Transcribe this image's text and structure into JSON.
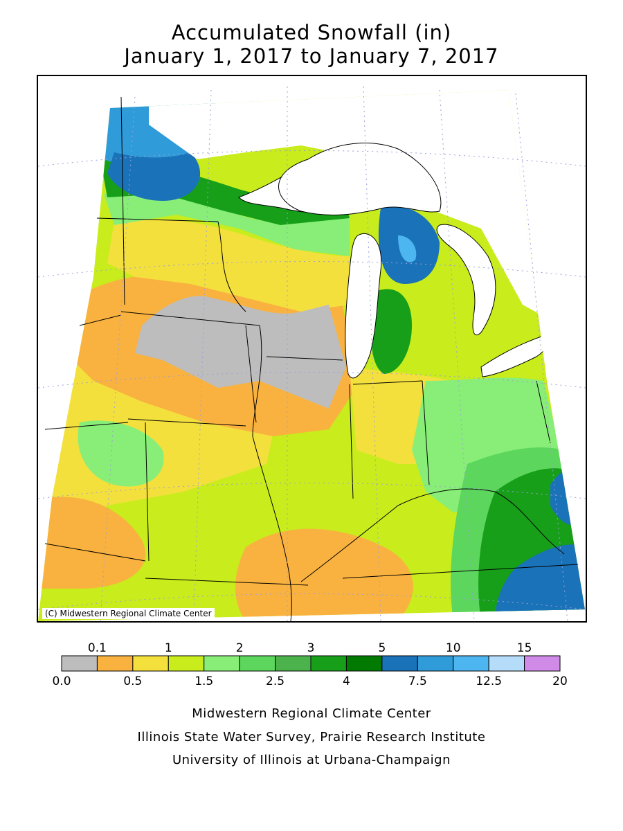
{
  "title": {
    "line1": "Accumulated Snowfall (in)",
    "line2": "January 1, 2017 to January 7, 2017"
  },
  "map": {
    "copyright": "(C) Midwestern Regional Climate Center",
    "colors": {
      "gray": "#bdbdbd",
      "orange": "#f9b23f",
      "yellow": "#f4e03d",
      "yellowgreen": "#c8ec1c",
      "lightgreen": "#88ee77",
      "green1": "#5cd65c",
      "green2": "#4cb34c",
      "green3": "#179f1a",
      "darkgreen": "#027a02",
      "blue_dark": "#1a72b8",
      "blue_med": "#2f9bd9",
      "blue_light": "#4db5ef",
      "blue_pale": "#b5dcf9",
      "violet": "#d08be8",
      "water": "#ffffff"
    }
  },
  "legend": {
    "bins": [
      {
        "color": "#bdbdbd"
      },
      {
        "color": "#f9b23f"
      },
      {
        "color": "#f4e03d"
      },
      {
        "color": "#c8ec1c"
      },
      {
        "color": "#88ee77"
      },
      {
        "color": "#5cd65c"
      },
      {
        "color": "#4cb34c"
      },
      {
        "color": "#179f1a"
      },
      {
        "color": "#027a02"
      },
      {
        "color": "#1a72b8"
      },
      {
        "color": "#2f9bd9"
      },
      {
        "color": "#4db5ef"
      },
      {
        "color": "#b5dcf9"
      },
      {
        "color": "#d08be8"
      }
    ],
    "top_labels": [
      "0.1",
      "1",
      "2",
      "3",
      "5",
      "10",
      "15"
    ],
    "bottom_labels": [
      "0.0",
      "0.5",
      "1.5",
      "2.5",
      "4",
      "7.5",
      "12.5",
      "20"
    ]
  },
  "credits": {
    "line1": "Midwestern Regional Climate Center",
    "line2": "Illinois State Water Survey, Prairie Research Institute",
    "line3": "University of Illinois at Urbana-Champaign"
  }
}
